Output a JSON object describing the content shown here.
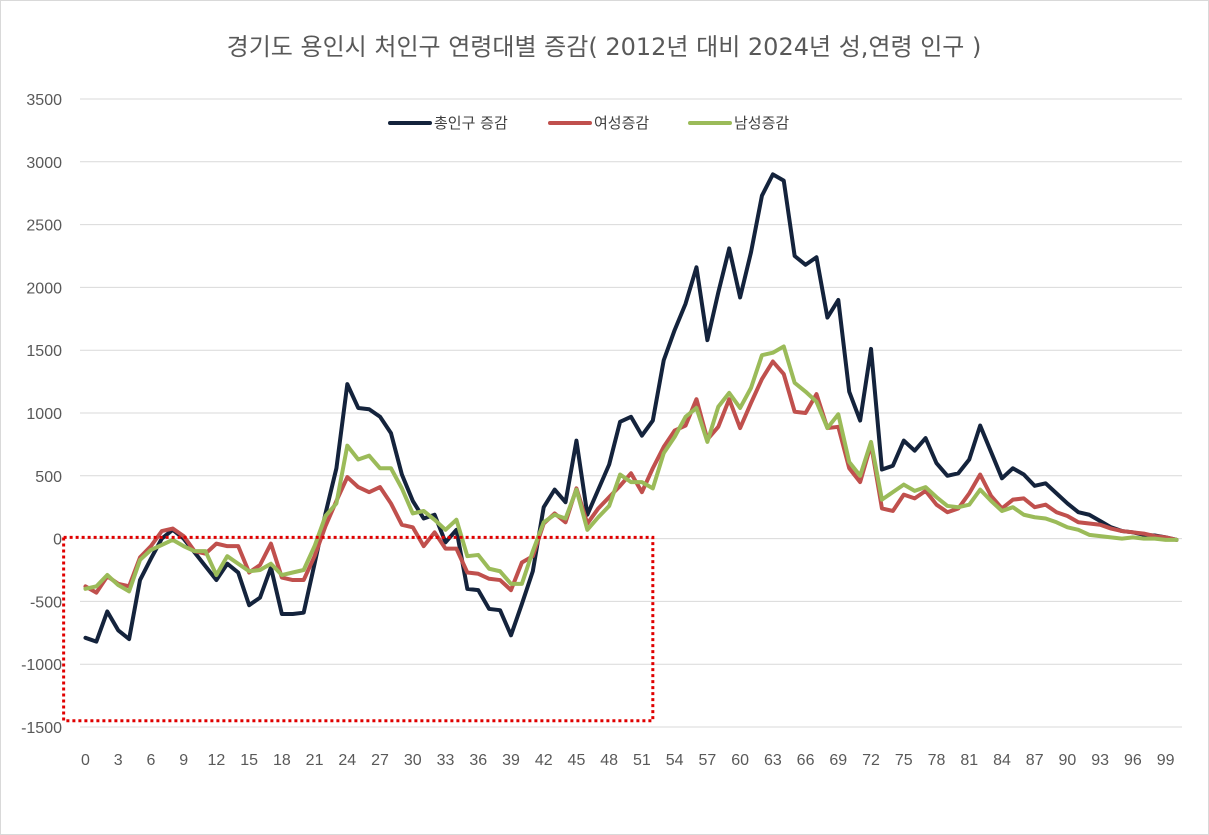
{
  "chart_data": {
    "type": "line",
    "title": "경기도 용인시 처인구 연령대별 증감( 2012년 대비 2024년 성,연령 인구 )",
    "xlabel": "",
    "ylabel": "",
    "ylim": [
      -1500,
      3500
    ],
    "y_ticks": [
      "3500",
      "3000",
      "2500",
      "2000",
      "1500",
      "1000",
      "500",
      "0",
      "-500",
      "-1000",
      "-1500"
    ],
    "x_tick_labels": [
      "0",
      "3",
      "6",
      "9",
      "12",
      "15",
      "18",
      "21",
      "24",
      "27",
      "30",
      "33",
      "36",
      "39",
      "42",
      "45",
      "48",
      "51",
      "54",
      "57",
      "60",
      "63",
      "66",
      "69",
      "72",
      "75",
      "78",
      "81",
      "84",
      "87",
      "90",
      "93",
      "96",
      "99"
    ],
    "grid": true,
    "legend_position": "top-center",
    "highlight_box": {
      "x_range": [
        -2,
        52
      ],
      "y_range": [
        -1450,
        10
      ],
      "color": "#e00000",
      "style": "dotted"
    },
    "series": [
      {
        "name": "총인구 증감",
        "color": "#14233c",
        "values": [
          -790,
          -820,
          -580,
          -730,
          -800,
          -330,
          -160,
          0,
          70,
          0,
          -110,
          -220,
          -330,
          -200,
          -270,
          -530,
          -470,
          -230,
          -600,
          -600,
          -590,
          -200,
          200,
          560,
          1230,
          1040,
          1030,
          970,
          840,
          510,
          300,
          160,
          190,
          -30,
          70,
          -400,
          -410,
          -560,
          -570,
          -770,
          -520,
          -260,
          250,
          390,
          290,
          780,
          190,
          390,
          590,
          930,
          970,
          820,
          940,
          1420,
          1660,
          1870,
          2160,
          1580,
          1960,
          2310,
          1920,
          2280,
          2730,
          2900,
          2850,
          2250,
          2180,
          2240,
          1760,
          1900,
          1170,
          940,
          1510,
          550,
          580,
          780,
          700,
          800,
          600,
          500,
          520,
          630,
          900,
          690,
          480,
          560,
          510,
          420,
          440,
          360,
          280,
          210,
          190,
          140,
          90,
          60,
          50,
          30,
          25,
          10,
          -10
        ],
        "width": 4
      },
      {
        "name": "여성증감",
        "color": "#c0504d",
        "values": [
          -380,
          -430,
          -300,
          -360,
          -380,
          -150,
          -60,
          60,
          80,
          20,
          -100,
          -120,
          -40,
          -60,
          -60,
          -270,
          -210,
          -40,
          -310,
          -330,
          -330,
          -140,
          100,
          300,
          490,
          410,
          370,
          410,
          280,
          110,
          90,
          -60,
          50,
          -80,
          -80,
          -270,
          -280,
          -320,
          -330,
          -410,
          -190,
          -140,
          120,
          200,
          130,
          400,
          120,
          240,
          330,
          420,
          520,
          370,
          560,
          730,
          860,
          900,
          1110,
          790,
          890,
          1110,
          880,
          1080,
          1270,
          1410,
          1310,
          1010,
          1000,
          1150,
          880,
          890,
          560,
          450,
          750,
          240,
          220,
          350,
          320,
          380,
          270,
          210,
          240,
          360,
          510,
          340,
          240,
          310,
          320,
          250,
          270,
          210,
          180,
          130,
          120,
          110,
          80,
          60,
          50,
          40,
          20,
          10,
          -10
        ],
        "width": 4
      },
      {
        "name": "남성증감",
        "color": "#9bbb59",
        "values": [
          -400,
          -380,
          -290,
          -370,
          -420,
          -170,
          -90,
          -50,
          -10,
          -60,
          -100,
          -100,
          -290,
          -140,
          -200,
          -260,
          -250,
          -200,
          -290,
          -270,
          -250,
          -60,
          180,
          280,
          740,
          630,
          660,
          560,
          560,
          400,
          200,
          220,
          150,
          70,
          150,
          -140,
          -130,
          -240,
          -260,
          -360,
          -360,
          -100,
          130,
          190,
          160,
          390,
          70,
          170,
          260,
          510,
          450,
          450,
          400,
          680,
          810,
          970,
          1040,
          770,
          1050,
          1160,
          1040,
          1200,
          1460,
          1480,
          1530,
          1240,
          1170,
          1090,
          880,
          990,
          610,
          500,
          770,
          310,
          370,
          430,
          380,
          410,
          330,
          260,
          250,
          270,
          390,
          300,
          220,
          250,
          190,
          170,
          160,
          130,
          90,
          70,
          30,
          20,
          10,
          0,
          10,
          0,
          0,
          -10,
          -10
        ],
        "width": 4
      }
    ]
  }
}
